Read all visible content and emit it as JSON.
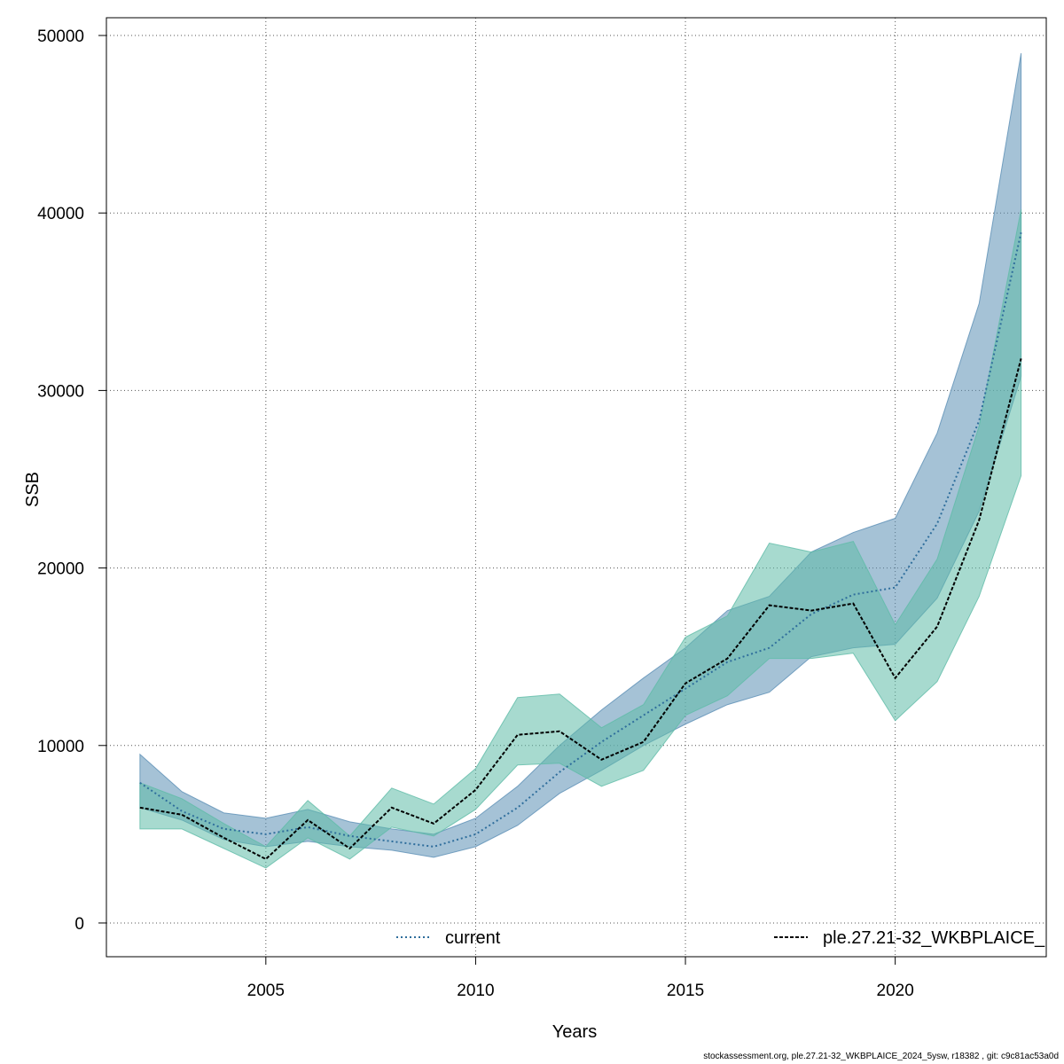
{
  "chart_data": {
    "type": "line",
    "title": "",
    "xlabel": "Years",
    "ylabel": "SSB",
    "xlim": [
      2001.2,
      2023.6
    ],
    "ylim": [
      -1900,
      51000
    ],
    "grid": true,
    "legend_position": "bottom",
    "x": [
      2002,
      2003,
      2004,
      2005,
      2006,
      2007,
      2008,
      2009,
      2010,
      2011,
      2012,
      2013,
      2014,
      2015,
      2016,
      2017,
      2018,
      2019,
      2020,
      2021,
      2022,
      2023
    ],
    "x_ticks": [
      "2005",
      "2010",
      "2015",
      "2020"
    ],
    "x_tick_values": [
      2005,
      2010,
      2015,
      2020
    ],
    "y_ticks": [
      "0",
      "10000",
      "20000",
      "30000",
      "40000",
      "50000"
    ],
    "y_tick_values": [
      0,
      10000,
      20000,
      30000,
      40000,
      50000
    ],
    "series": [
      {
        "name": "current",
        "color": "#2F6E9C",
        "band_color": "#5B8FB5",
        "line_style": "dotted",
        "values": [
          7900,
          6300,
          5300,
          5000,
          5400,
          4900,
          4600,
          4300,
          5000,
          6500,
          8500,
          10200,
          11700,
          13200,
          14700,
          15500,
          17400,
          18500,
          18900,
          22500,
          28300,
          38900
        ],
        "lower": [
          6500,
          5800,
          4700,
          4300,
          4600,
          4300,
          4100,
          3700,
          4300,
          5500,
          7300,
          8600,
          10000,
          11200,
          12300,
          13000,
          15000,
          15500,
          15700,
          18300,
          23200,
          30800
        ],
        "upper": [
          9500,
          7400,
          6200,
          5900,
          6400,
          5700,
          5300,
          5000,
          5900,
          7700,
          10000,
          12000,
          13800,
          15500,
          17600,
          18400,
          20900,
          22000,
          22800,
          27600,
          34900,
          49000
        ]
      },
      {
        "name": "ple.27.21-32_WKBPLAICE_",
        "color": "#000000",
        "band_color": "#5FBBA8",
        "line_style": "dashed",
        "values": [
          6500,
          6100,
          4800,
          3600,
          5800,
          4200,
          6500,
          5600,
          7500,
          10600,
          10800,
          9200,
          10200,
          13500,
          14900,
          17900,
          17600,
          18000,
          13800,
          16700,
          22700,
          31800
        ],
        "lower": [
          5300,
          5300,
          4200,
          3100,
          4800,
          3600,
          5400,
          4900,
          6400,
          8900,
          9000,
          7700,
          8600,
          11700,
          12800,
          14900,
          14900,
          15200,
          11400,
          13600,
          18400,
          25200
        ],
        "upper": [
          7900,
          7000,
          5600,
          4300,
          6900,
          4900,
          7600,
          6700,
          8700,
          12700,
          12900,
          11000,
          12300,
          16100,
          17300,
          21400,
          20900,
          21500,
          16800,
          20500,
          28000,
          40200
        ]
      }
    ]
  },
  "footer": "stockassessment.org, ple.27.21-32_WKBPLAICE_2024_5ysw, r18382 , git: c9c81ac53a0d"
}
